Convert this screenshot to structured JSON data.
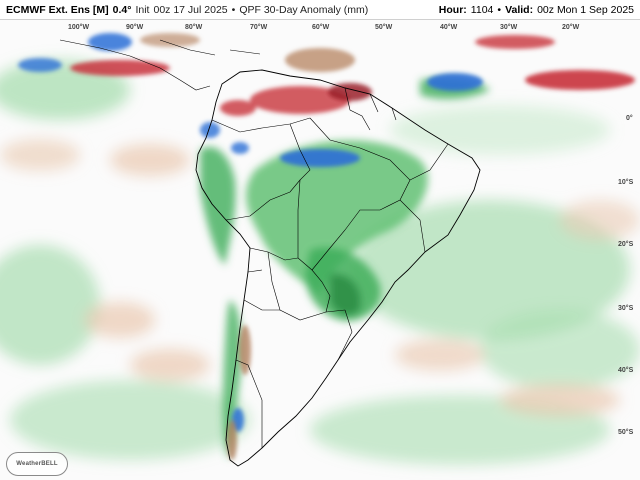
{
  "header": {
    "model": "ECMWF Ext. Ens [M]",
    "resolution": "0.4°",
    "init_label": "Init",
    "init": "00z 17 Jul 2025",
    "separator": "•",
    "product": "QPF 30-Day Anomaly (mm)",
    "hour_label": "Hour:",
    "hour": "1104",
    "valid_label": "Valid:",
    "valid": "00z Mon 1 Sep 2025"
  },
  "map": {
    "longitude_labels": [
      "100°W",
      "90°W",
      "80°W",
      "70°W",
      "60°W",
      "50°W",
      "40°W",
      "30°W",
      "20°W"
    ],
    "latitude_labels": [
      "0°",
      "10°S",
      "20°S",
      "30°S",
      "40°S",
      "50°S"
    ],
    "colors": {
      "wet_strong": "#2b6fd6",
      "wet_moderate": "#3fae5a",
      "wet_light": "#a8ddb0",
      "dry_light": "#e9c9b0",
      "dry_moderate": "#b07a55",
      "dry_strong": "#c8323c",
      "land_border": "#000000",
      "background": "#ffffff"
    }
  },
  "logo": {
    "text": "WeatherBELL"
  }
}
